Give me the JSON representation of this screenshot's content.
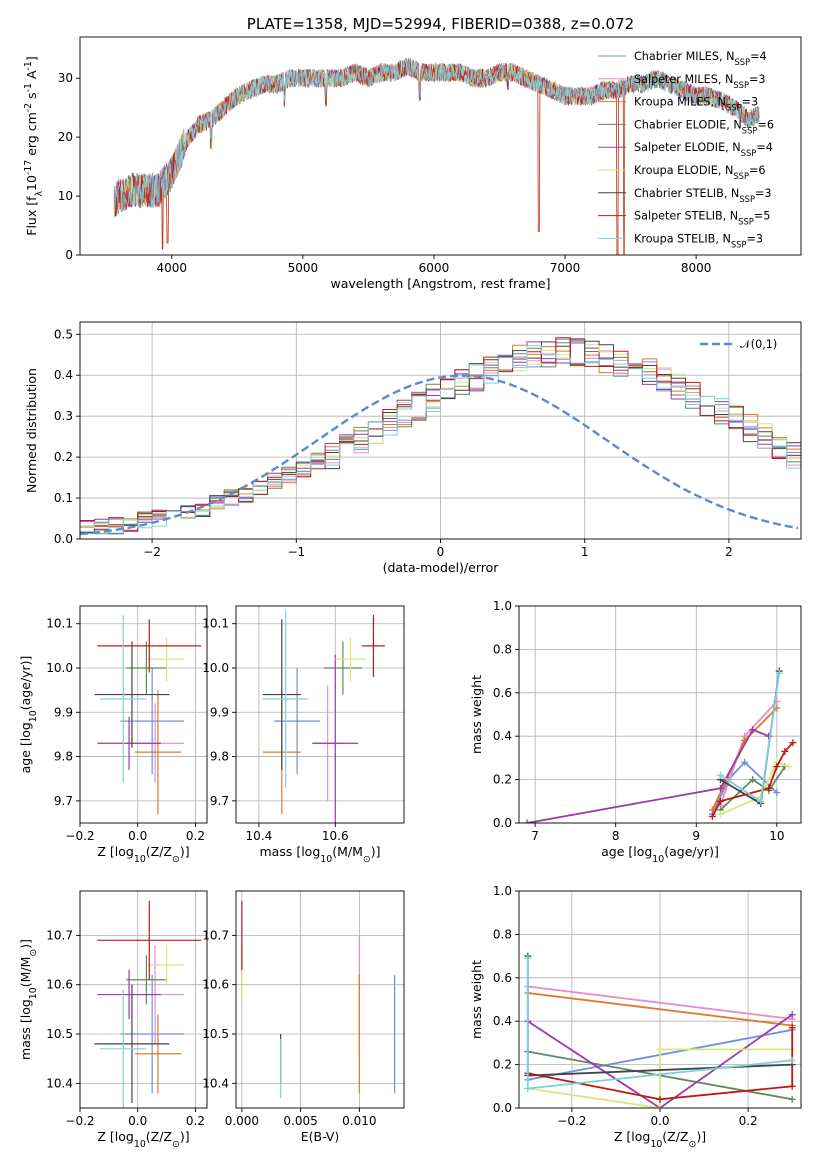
{
  "colors": {
    "Chabrier MILES": "#6f8fd8",
    "Salpeter MILES": "#e58fc5",
    "Kroupa MILES": "#e0782a",
    "Chabrier ELODIE": "#5e8a5e",
    "Salpeter ELODIE": "#9b3aa8",
    "Kroupa ELODIE": "#d5e87a",
    "Chabrier STELIB": "#444444",
    "Salpeter STELIB": "#c01818",
    "Kroupa STELIB": "#7fd0dc",
    "normal": "#5b8ad0",
    "spectrum": "#555555"
  },
  "chart_data": [
    {
      "id": "spectrum",
      "type": "line",
      "title": "PLATE=1358, MJD=52994, FIBERID=0388, z=0.072",
      "xlabel": "wavelength [Angstrom, rest frame]",
      "ylabel": "Flux [f$_\\lambda$10$^{-17}$ erg cm$^{-2}$ s$^{-1}$ A$^{-1}$]",
      "xlim": [
        3300,
        8800
      ],
      "ylim": [
        0,
        37
      ],
      "xticks": [
        4000,
        5000,
        6000,
        7000,
        8000
      ],
      "yticks": [
        0,
        10,
        20,
        30
      ],
      "continuum": [
        [
          3560,
          9
        ],
        [
          3600,
          10
        ],
        [
          3700,
          11
        ],
        [
          3800,
          11
        ],
        [
          3900,
          11
        ],
        [
          4000,
          14
        ],
        [
          4100,
          19
        ],
        [
          4200,
          22
        ],
        [
          4300,
          23
        ],
        [
          4400,
          25
        ],
        [
          4500,
          27
        ],
        [
          4600,
          28
        ],
        [
          4700,
          29
        ],
        [
          4800,
          29
        ],
        [
          4900,
          30
        ],
        [
          5000,
          30
        ],
        [
          5100,
          30
        ],
        [
          5200,
          30
        ],
        [
          5300,
          30
        ],
        [
          5400,
          31
        ],
        [
          5500,
          30
        ],
        [
          5600,
          31
        ],
        [
          5700,
          31
        ],
        [
          5800,
          32
        ],
        [
          5900,
          31
        ],
        [
          6000,
          31
        ],
        [
          6100,
          31
        ],
        [
          6200,
          31
        ],
        [
          6300,
          30
        ],
        [
          6400,
          30
        ],
        [
          6500,
          31
        ],
        [
          6600,
          31
        ],
        [
          6700,
          30
        ],
        [
          6800,
          29
        ],
        [
          6900,
          28
        ],
        [
          7000,
          27
        ],
        [
          7100,
          27
        ],
        [
          7200,
          27
        ],
        [
          7300,
          28
        ],
        [
          7400,
          28
        ],
        [
          7500,
          29
        ],
        [
          7600,
          29
        ],
        [
          7700,
          30
        ],
        [
          7800,
          29
        ],
        [
          7900,
          28
        ],
        [
          8000,
          27
        ],
        [
          8100,
          27
        ],
        [
          8200,
          26
        ],
        [
          8300,
          25
        ],
        [
          8400,
          23
        ],
        [
          8480,
          24
        ]
      ],
      "dips": [
        [
          3930,
          1
        ],
        [
          3968,
          2
        ],
        [
          4101,
          16
        ],
        [
          4300,
          18
        ],
        [
          4861,
          25
        ],
        [
          5175,
          25
        ],
        [
          5893,
          26
        ],
        [
          6563,
          28
        ],
        [
          6800,
          4
        ],
        [
          7400,
          0
        ],
        [
          7450,
          0
        ],
        [
          8350,
          22
        ]
      ],
      "legend": [
        {
          "name": "Chabrier MILES, N$_{SSP}$=4"
        },
        {
          "name": "Salpeter MILES, N$_{SSP}$=3"
        },
        {
          "name": "Kroupa MILES, N$_{SSP}$=3"
        },
        {
          "name": "Chabrier ELODIE, N$_{SSP}$=6"
        },
        {
          "name": "Salpeter ELODIE, N$_{SSP}$=4"
        },
        {
          "name": "Kroupa ELODIE, N$_{SSP}$=6"
        },
        {
          "name": "Chabrier STELIB, N$_{SSP}$=3"
        },
        {
          "name": "Salpeter STELIB, N$_{SSP}$=5"
        },
        {
          "name": "Kroupa STELIB, N$_{SSP}$=3"
        }
      ],
      "legend_placement": "upper-right"
    },
    {
      "id": "residuals",
      "type": "histogram",
      "xlabel": "(data-model)/error",
      "ylabel": "Normed distribution",
      "xlim": [
        -2.5,
        2.5
      ],
      "ylim": [
        0,
        0.53
      ],
      "xticks": [
        -2,
        -1,
        0,
        1,
        2
      ],
      "yticks": [
        0.0,
        0.1,
        0.2,
        0.3,
        0.4,
        0.5
      ],
      "grid": true,
      "bin_width": 0.1,
      "bin_start": -2.5,
      "base_profile": [
        0.025,
        0.028,
        0.032,
        0.038,
        0.045,
        0.05,
        0.056,
        0.064,
        0.075,
        0.09,
        0.1,
        0.11,
        0.125,
        0.14,
        0.155,
        0.17,
        0.19,
        0.205,
        0.225,
        0.245,
        0.265,
        0.285,
        0.305,
        0.325,
        0.345,
        0.365,
        0.38,
        0.395,
        0.41,
        0.425,
        0.44,
        0.45,
        0.455,
        0.46,
        0.455,
        0.45,
        0.44,
        0.43,
        0.42,
        0.405,
        0.39,
        0.37,
        0.35,
        0.33,
        0.31,
        0.29,
        0.27,
        0.25,
        0.23,
        0.205,
        0.18,
        0.16,
        0.14,
        0.12,
        0.1,
        0.085,
        0.07,
        0.06,
        0.05,
        0.04,
        0.036,
        0.032,
        0.028,
        0.025,
        0.022,
        0.02
      ],
      "normal_label": "$\\mathcal{N}(0,1)$",
      "normal_mu": 0.15,
      "normal_sigma": 1.0,
      "legend_placement": "upper-right"
    },
    {
      "id": "age-vs-Z",
      "type": "errorbar",
      "xlabel": "Z [log$_{10}$($Z/Z_\\odot$)]",
      "ylabel": "age  [log$_{10}$($age/yr$)]",
      "xlim": [
        -0.2,
        0.24
      ],
      "ylim": [
        9.65,
        10.14
      ],
      "xticks": [
        -0.2,
        0.0,
        0.2
      ],
      "yticks": [
        9.7,
        9.8,
        9.9,
        10.0,
        10.1
      ],
      "grid": true,
      "points": [
        {
          "model": "Chabrier MILES",
          "x": 0.05,
          "y": 9.88,
          "xerr": 0.11,
          "yerr": 0.12
        },
        {
          "model": "Salpeter MILES",
          "x": 0.06,
          "y": 9.83,
          "xerr": 0.1,
          "yerr": 0.09
        },
        {
          "model": "Kroupa MILES",
          "x": 0.07,
          "y": 9.81,
          "xerr": 0.08,
          "yerr": 0.14
        },
        {
          "model": "Chabrier ELODIE",
          "x": 0.03,
          "y": 10.0,
          "xerr": 0.07,
          "yerr": 0.06
        },
        {
          "model": "Salpeter ELODIE",
          "x": -0.03,
          "y": 9.83,
          "xerr": 0.11,
          "yerr": 0.06
        },
        {
          "model": "Kroupa ELODIE",
          "x": 0.1,
          "y": 10.02,
          "xerr": 0.06,
          "yerr": 0.05
        },
        {
          "model": "Chabrier STELIB",
          "x": -0.02,
          "y": 9.94,
          "xerr": 0.13,
          "yerr": 0.12
        },
        {
          "model": "Salpeter STELIB",
          "x": 0.04,
          "y": 10.05,
          "xerr": 0.18,
          "yerr": 0.06
        },
        {
          "model": "Kroupa STELIB",
          "x": -0.05,
          "y": 9.93,
          "xerr": 0.08,
          "yerr": 0.19
        }
      ]
    },
    {
      "id": "age-vs-mass",
      "type": "errorbar",
      "xlabel": "mass [log$_{10}$($M/M_\\odot$)]",
      "ylabel": "",
      "xlim": [
        10.34,
        10.78
      ],
      "ylim": [
        9.65,
        10.14
      ],
      "xticks": [
        10.4,
        10.6
      ],
      "yticks": [
        9.7,
        9.8,
        9.9,
        10.0,
        10.1
      ],
      "grid": true,
      "points": [
        {
          "model": "Chabrier MILES",
          "x": 10.5,
          "y": 9.88,
          "xerr": 0.06,
          "yerr": 0.12
        },
        {
          "model": "Salpeter MILES",
          "x": 10.58,
          "y": 9.83,
          "xerr": 0.04,
          "yerr": 0.13
        },
        {
          "model": "Kroupa MILES",
          "x": 10.46,
          "y": 9.81,
          "xerr": 0.05,
          "yerr": 0.14
        },
        {
          "model": "Chabrier ELODIE",
          "x": 10.62,
          "y": 10.0,
          "xerr": 0.05,
          "yerr": 0.06
        },
        {
          "model": "Salpeter ELODIE",
          "x": 10.6,
          "y": 9.83,
          "xerr": 0.06,
          "yerr": 0.2
        },
        {
          "model": "Kroupa ELODIE",
          "x": 10.64,
          "y": 10.02,
          "xerr": 0.04,
          "yerr": 0.05
        },
        {
          "model": "Chabrier STELIB",
          "x": 10.46,
          "y": 9.94,
          "xerr": 0.05,
          "yerr": 0.17
        },
        {
          "model": "Salpeter STELIB",
          "x": 10.7,
          "y": 10.05,
          "xerr": 0.03,
          "yerr": 0.07
        },
        {
          "model": "Kroupa STELIB",
          "x": 10.47,
          "y": 9.93,
          "xerr": 0.06,
          "yerr": 0.2
        }
      ]
    },
    {
      "id": "massweight-vs-age",
      "type": "line",
      "xlabel": "age  [log$_{10}$($age/yr$)]",
      "ylabel": "mass weight",
      "xlim": [
        6.8,
        10.3
      ],
      "ylim": [
        0,
        1
      ],
      "xticks": [
        7,
        8,
        9,
        10
      ],
      "yticks": [
        0.0,
        0.2,
        0.4,
        0.6,
        0.8,
        1.0
      ],
      "grid": true,
      "series": [
        {
          "model": "Chabrier MILES",
          "x": [
            9.2,
            9.4,
            9.6,
            10.0
          ],
          "y": [
            0.04,
            0.2,
            0.28,
            0.14
          ]
        },
        {
          "model": "Salpeter MILES",
          "x": [
            9.3,
            9.6,
            10.0
          ],
          "y": [
            0.08,
            0.4,
            0.56
          ]
        },
        {
          "model": "Kroupa MILES",
          "x": [
            9.2,
            9.6,
            10.0
          ],
          "y": [
            0.06,
            0.38,
            0.53
          ]
        },
        {
          "model": "Chabrier ELODIE",
          "x": [
            9.3,
            9.7,
            9.9,
            10.1
          ],
          "y": [
            0.06,
            0.2,
            0.15,
            0.26
          ]
        },
        {
          "model": "Salpeter ELODIE",
          "x": [
            6.9,
            9.3,
            9.7,
            9.9
          ],
          "y": [
            0.0,
            0.16,
            0.43,
            0.4
          ]
        },
        {
          "model": "Kroupa ELODIE",
          "x": [
            9.3,
            9.8,
            10.0,
            10.15
          ],
          "y": [
            0.04,
            0.12,
            0.28,
            0.26
          ]
        },
        {
          "model": "Chabrier STELIB",
          "x": [
            9.3,
            9.8,
            10.03
          ],
          "y": [
            0.2,
            0.09,
            0.7
          ]
        },
        {
          "model": "Salpeter STELIB",
          "x": [
            9.2,
            9.3,
            9.9,
            10.0,
            10.1,
            10.2
          ],
          "y": [
            0.03,
            0.1,
            0.16,
            0.26,
            0.33,
            0.37
          ]
        },
        {
          "model": "Kroupa STELIB",
          "x": [
            9.3,
            9.8,
            10.03
          ],
          "y": [
            0.22,
            0.1,
            0.69
          ]
        }
      ]
    },
    {
      "id": "mass-vs-Z",
      "type": "errorbar",
      "xlabel": "Z [log$_{10}$($Z/Z_\\odot$)]",
      "ylabel": "mass [log$_{10}$($M/M_\\odot$)]",
      "xlim": [
        -0.2,
        0.24
      ],
      "ylim": [
        10.35,
        10.79
      ],
      "xticks": [
        -0.2,
        0.0,
        0.2
      ],
      "yticks": [
        10.4,
        10.5,
        10.6,
        10.7
      ],
      "grid": true,
      "points": [
        {
          "model": "Chabrier MILES",
          "x": 0.05,
          "y": 10.5,
          "xerr": 0.11,
          "yerr": 0.12
        },
        {
          "model": "Salpeter MILES",
          "x": 0.06,
          "y": 10.58,
          "xerr": 0.1,
          "yerr": 0.1
        },
        {
          "model": "Kroupa MILES",
          "x": 0.07,
          "y": 10.46,
          "xerr": 0.08,
          "yerr": 0.08
        },
        {
          "model": "Chabrier ELODIE",
          "x": 0.03,
          "y": 10.61,
          "xerr": 0.07,
          "yerr": 0.05
        },
        {
          "model": "Salpeter ELODIE",
          "x": -0.03,
          "y": 10.58,
          "xerr": 0.11,
          "yerr": 0.05
        },
        {
          "model": "Kroupa ELODIE",
          "x": 0.1,
          "y": 10.64,
          "xerr": 0.06,
          "yerr": 0.04
        },
        {
          "model": "Chabrier STELIB",
          "x": -0.02,
          "y": 10.48,
          "xerr": 0.13,
          "yerr": 0.12
        },
        {
          "model": "Salpeter STELIB",
          "x": 0.04,
          "y": 10.69,
          "xerr": 0.18,
          "yerr": 0.08
        },
        {
          "model": "Kroupa STELIB",
          "x": -0.05,
          "y": 10.47,
          "xerr": 0.08,
          "yerr": 0.12
        }
      ]
    },
    {
      "id": "mass-vs-EBV",
      "type": "errorbar",
      "xlabel": "E(B-V)",
      "ylabel": "",
      "xlim": [
        -0.0005,
        0.0138
      ],
      "ylim": [
        10.35,
        10.79
      ],
      "xticks": [
        0.0,
        0.005,
        0.01
      ],
      "xticklabels": [
        "0.000",
        "0.005",
        "0.010"
      ],
      "yticks": [
        10.4,
        10.5,
        10.6,
        10.7
      ],
      "grid": true,
      "points": [
        {
          "model": "Chabrier MILES",
          "x": 0.013,
          "y": 10.5,
          "xerr": 0,
          "yerr": 0.12
        },
        {
          "model": "Salpeter MILES",
          "x": 0.01,
          "y": 10.58,
          "xerr": 0,
          "yerr": 0.12
        },
        {
          "model": "Kroupa MILES",
          "x": 0.01,
          "y": 10.5,
          "xerr": 0,
          "yerr": 0.12
        },
        {
          "model": "Chabrier ELODIE",
          "x": 0.0,
          "y": 10.62,
          "xerr": 0,
          "yerr": 0.06
        },
        {
          "model": "Salpeter ELODIE",
          "x": 0.0,
          "y": 10.65,
          "xerr": 0,
          "yerr": 0.03
        },
        {
          "model": "Kroupa ELODIE",
          "x": 0.0,
          "y": 10.62,
          "xerr": 0,
          "yerr": 0.06
        },
        {
          "model": "Chabrier STELIB",
          "x": 0.0033,
          "y": 10.45,
          "xerr": 0,
          "yerr": 0.05
        },
        {
          "model": "Salpeter STELIB",
          "x": 0.0,
          "y": 10.7,
          "xerr": 0,
          "yerr": 0.07
        },
        {
          "model": "Kroupa STELIB",
          "x": 0.0033,
          "y": 10.43,
          "xerr": 0,
          "yerr": 0.06
        }
      ]
    },
    {
      "id": "massweight-vs-Z",
      "type": "line",
      "xlabel": "Z [log$_{10}$($Z/Z_\\odot$)]",
      "ylabel": "mass weight",
      "xlim": [
        -0.32,
        0.32
      ],
      "ylim": [
        0,
        1
      ],
      "xticks": [
        -0.2,
        0.0,
        0.2
      ],
      "yticks": [
        0.0,
        0.2,
        0.4,
        0.6,
        0.8,
        1.0
      ],
      "grid": true,
      "series": [
        {
          "model": "Chabrier MILES",
          "x": [
            -0.3,
            0.3
          ],
          "y": [
            0.13,
            0.36
          ]
        },
        {
          "model": "Salpeter MILES",
          "x": [
            -0.3,
            0.3
          ],
          "y": [
            0.56,
            0.41
          ]
        },
        {
          "model": "Kroupa MILES",
          "x": [
            -0.3,
            0.3
          ],
          "y": [
            0.53,
            0.38
          ]
        },
        {
          "model": "Chabrier ELODIE",
          "x": [
            -0.3,
            0.3
          ],
          "y": [
            0.26,
            0.04
          ]
        },
        {
          "model": "Salpeter ELODIE",
          "x": [
            -0.3,
            0.0,
            0.3
          ],
          "y": [
            0.4,
            0.0,
            0.43
          ]
        },
        {
          "model": "Kroupa ELODIE",
          "x": [
            -0.3,
            0.0,
            0.0,
            0.3
          ],
          "y": [
            0.09,
            0.0,
            0.27,
            0.27
          ]
        },
        {
          "model": "Chabrier STELIB",
          "x": [
            -0.3,
            -0.3,
            0.3
          ],
          "y": [
            0.7,
            0.15,
            0.2
          ]
        },
        {
          "model": "Salpeter STELIB",
          "x": [
            -0.3,
            0.0,
            0.3,
            0.3
          ],
          "y": [
            0.16,
            0.04,
            0.1,
            0.37
          ]
        },
        {
          "model": "Kroupa STELIB",
          "x": [
            -0.3,
            -0.3,
            0.3
          ],
          "y": [
            0.69,
            0.09,
            0.22
          ]
        }
      ]
    }
  ]
}
